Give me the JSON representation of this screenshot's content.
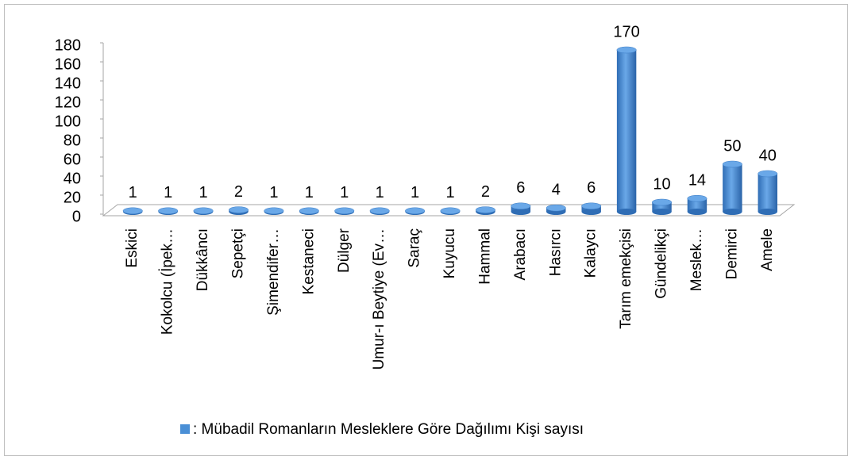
{
  "chart_data": {
    "type": "bar",
    "categories": [
      "Eskici",
      "Kokolcu (İpek…",
      "Dükkâncı",
      "Sepetçi",
      "Şimendifer…",
      "Kestaneci",
      "Dülger",
      "Umur-ı Beytiye (Ev…",
      "Saraç",
      "Kuyucu",
      "Hammal",
      "Arabacı",
      "Hasırcı",
      "Kalaycı",
      "Tarım emekçisi",
      "Gündelikçi",
      "Meslek…",
      "Demirci",
      "Amele"
    ],
    "series": [
      {
        "name": ": Mübadil Romanların Mesleklere Göre Dağılımı Kişi sayısı",
        "color": "#4a8fd6",
        "values": [
          1,
          1,
          1,
          2,
          1,
          1,
          1,
          1,
          1,
          1,
          2,
          6,
          4,
          6,
          170,
          10,
          14,
          50,
          40
        ]
      }
    ],
    "ylim": [
      0,
      180
    ],
    "yticks": [
      0,
      20,
      40,
      60,
      80,
      100,
      120,
      140,
      160,
      180
    ],
    "legend": "bottom"
  }
}
